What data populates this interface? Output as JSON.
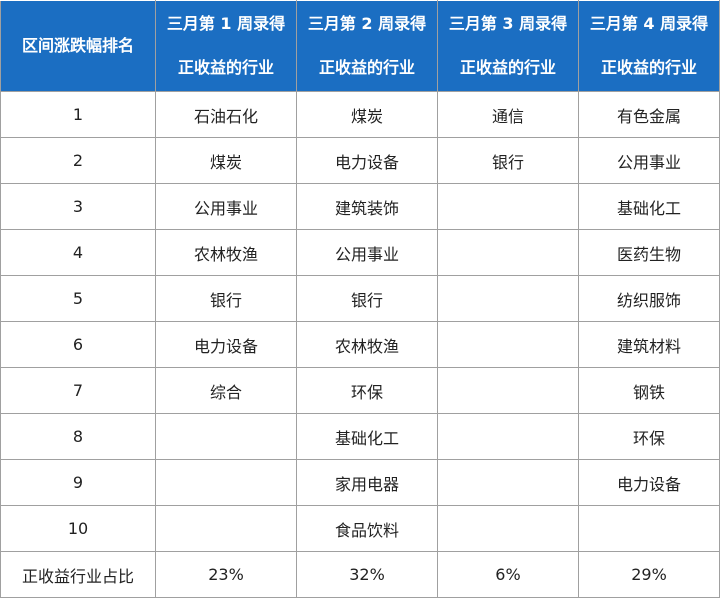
{
  "table": {
    "header": [
      [
        "区间涨跌幅排名"
      ],
      [
        "三月第 1 周录得",
        "正收益的行业"
      ],
      [
        "三月第 2 周录得",
        "正收益的行业"
      ],
      [
        "三月第 3 周录得",
        "正收益的行业"
      ],
      [
        "三月第 4 周录得",
        "正收益的行业"
      ]
    ],
    "rows": [
      [
        "1",
        "石油石化",
        "煤炭",
        "通信",
        "有色金属"
      ],
      [
        "2",
        "煤炭",
        "电力设备",
        "银行",
        "公用事业"
      ],
      [
        "3",
        "公用事业",
        "建筑装饰",
        null,
        "基础化工"
      ],
      [
        "4",
        "农林牧渔",
        "公用事业",
        null,
        "医药生物"
      ],
      [
        "5",
        "银行",
        "银行",
        null,
        "纺织服饰"
      ],
      [
        "6",
        "电力设备",
        "农林牧渔",
        null,
        "建筑材料"
      ],
      [
        "7",
        "综合",
        "环保",
        null,
        "钢铁"
      ],
      [
        "8",
        null,
        "基础化工",
        null,
        "环保"
      ],
      [
        "9",
        null,
        "家用电器",
        null,
        "电力设备"
      ],
      [
        "10",
        null,
        "食品饮料",
        null,
        null
      ],
      [
        "正收益行业占比",
        "23%",
        "32%",
        "6%",
        "29%"
      ]
    ]
  }
}
